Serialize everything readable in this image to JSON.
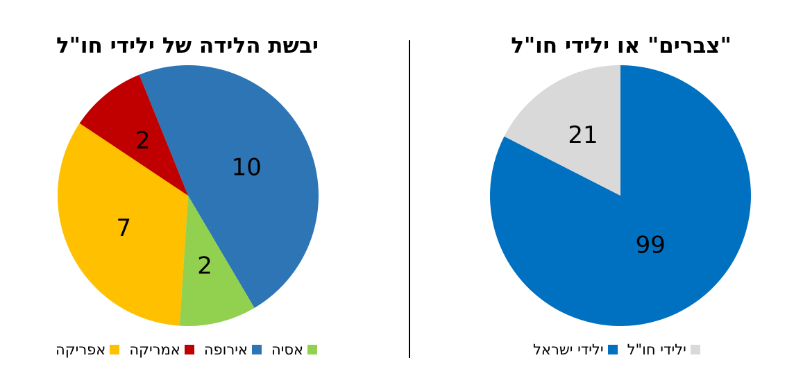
{
  "colors": {
    "europe": "#2e75b6",
    "asia": "#92d050",
    "africa": "#ffc000",
    "america": "#c00000",
    "israel": "#0070c0",
    "abroad": "#d9d9d9"
  },
  "chart_data": [
    {
      "type": "pie",
      "title": "יבשת הלידה של ילידי חו\"ל",
      "slices": [
        {
          "label": "אירופה",
          "value": 10,
          "color": "#2e75b6"
        },
        {
          "label": "אסיה",
          "value": 2,
          "color": "#92d050"
        },
        {
          "label": "אפריקה",
          "value": 7,
          "color": "#ffc000"
        },
        {
          "label": "אמריקה",
          "value": 2,
          "color": "#c00000"
        }
      ],
      "legend": [
        "אפריקה",
        "אמריקה",
        "אירופה",
        "אסיה"
      ],
      "legend_position": "bottom"
    },
    {
      "type": "pie",
      "title": "\"צברים\" או ילידי חו\"ל",
      "slices": [
        {
          "label": "ילידי ישראל",
          "value": 99,
          "color": "#0070c0"
        },
        {
          "label": "ילידי חו\"ל",
          "value": 21,
          "color": "#d9d9d9"
        }
      ],
      "legend": [
        "ילידי ישראל",
        "ילידי חו\"ל"
      ],
      "legend_position": "bottom"
    }
  ]
}
